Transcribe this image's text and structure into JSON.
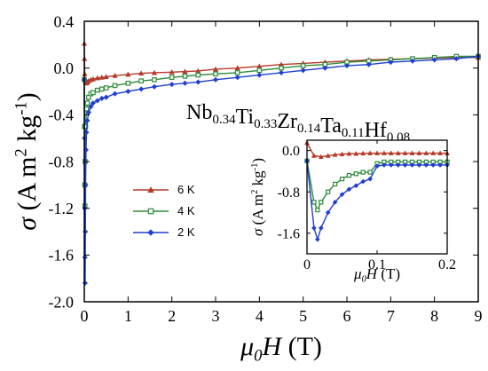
{
  "chart_data": [
    {
      "type": "scatter",
      "role": "main",
      "xlabel_symbol": "μ",
      "xlabel_sub": "0",
      "xlabel_var": "H",
      "xlabel_unit": " (T)",
      "ylabel_symbol": "σ",
      "ylabel_unit": " (A m",
      "ylabel_sup1": "2",
      "ylabel_mid": " kg",
      "ylabel_sup2": "-1",
      "ylabel_end": ")",
      "xlim": [
        0,
        9
      ],
      "ylim": [
        -2.0,
        0.4
      ],
      "xticks": [
        0,
        1,
        2,
        3,
        4,
        5,
        6,
        7,
        8,
        9
      ],
      "yticks": [
        "-2.0",
        "-1.6",
        "-1.2",
        "-0.8",
        "-0.4",
        "0.0",
        "0.4"
      ],
      "ytick_values": [
        -2.0,
        -1.6,
        -1.2,
        -0.8,
        -0.4,
        0.0,
        0.4
      ],
      "annotation": {
        "parts": [
          {
            "t": "Nb",
            "s": "0.34"
          },
          {
            "t": "Ti",
            "s": "0.33"
          },
          {
            "t": "Zr",
            "s": "0.14"
          },
          {
            "t": "Ta",
            "s": "0.11"
          },
          {
            "t": "Hf",
            "s": "0.08"
          }
        ]
      },
      "legend": {
        "placement": "middle-left"
      },
      "series": [
        {
          "name": "6 K",
          "color": "#b53a2a",
          "marker": "triangle",
          "x": [
            0,
            0.005,
            0.01,
            0.02,
            0.03,
            0.05,
            0.07,
            0.1,
            0.15,
            0.2,
            0.3,
            0.4,
            0.5,
            0.7,
            1.0,
            1.3,
            1.6,
            2.0,
            2.3,
            2.6,
            3.0,
            3.5,
            4.0,
            4.5,
            5.0,
            5.5,
            6.0,
            6.5,
            7.0,
            7.5,
            8.0,
            8.5,
            9.0
          ],
          "y": [
            0.21,
            0.08,
            -0.05,
            -0.1,
            -0.12,
            -0.13,
            -0.12,
            -0.11,
            -0.1,
            -0.095,
            -0.085,
            -0.08,
            -0.075,
            -0.065,
            -0.055,
            -0.045,
            -0.04,
            -0.035,
            -0.03,
            -0.025,
            -0.01,
            0.0,
            0.015,
            0.03,
            0.04,
            0.05,
            0.06,
            0.07,
            0.075,
            0.08,
            0.085,
            0.09,
            0.09
          ]
        },
        {
          "name": "4 K",
          "color": "#2e8b3a",
          "marker": "square",
          "x": [
            0,
            0.005,
            0.01,
            0.015,
            0.02,
            0.03,
            0.05,
            0.07,
            0.1,
            0.15,
            0.2,
            0.3,
            0.4,
            0.5,
            0.7,
            1.0,
            1.3,
            1.6,
            2.0,
            2.3,
            2.6,
            3.0,
            3.5,
            4.0,
            4.5,
            5.0,
            5.5,
            6.0,
            6.5,
            7.0,
            7.5,
            8.0,
            8.5,
            9.0
          ],
          "y": [
            -0.1,
            -0.5,
            -1.0,
            -1.18,
            -0.8,
            -0.5,
            -0.35,
            -0.3,
            -0.25,
            -0.22,
            -0.21,
            -0.19,
            -0.18,
            -0.17,
            -0.15,
            -0.13,
            -0.11,
            -0.1,
            -0.08,
            -0.07,
            -0.06,
            -0.05,
            -0.04,
            -0.02,
            0.0,
            0.02,
            0.03,
            0.05,
            0.06,
            0.07,
            0.08,
            0.09,
            0.1,
            0.1
          ]
        },
        {
          "name": "2 K",
          "color": "#1f3fd0",
          "marker": "diamond",
          "x": [
            0,
            0.005,
            0.01,
            0.015,
            0.02,
            0.025,
            0.03,
            0.04,
            0.05,
            0.07,
            0.1,
            0.15,
            0.2,
            0.3,
            0.4,
            0.5,
            0.7,
            1.0,
            1.3,
            1.6,
            2.0,
            2.3,
            2.6,
            3.0,
            3.5,
            4.0,
            4.5,
            5.0,
            5.5,
            6.0,
            6.5,
            7.0,
            7.5,
            8.0,
            8.5,
            9.0
          ],
          "y": [
            -0.1,
            -0.6,
            -1.2,
            -1.62,
            -1.84,
            -1.4,
            -1.0,
            -0.7,
            -0.55,
            -0.45,
            -0.38,
            -0.33,
            -0.3,
            -0.28,
            -0.26,
            -0.25,
            -0.22,
            -0.2,
            -0.18,
            -0.16,
            -0.14,
            -0.13,
            -0.12,
            -0.1,
            -0.08,
            -0.06,
            -0.04,
            -0.02,
            0.0,
            0.02,
            0.03,
            0.05,
            0.06,
            0.07,
            0.08,
            0.1
          ]
        }
      ]
    },
    {
      "type": "line",
      "role": "inset",
      "xlabel_symbol": "μ",
      "xlabel_sub": "0",
      "xlabel_var": "H",
      "xlabel_unit": " (T)",
      "ylabel_symbol": "σ",
      "ylabel_unit": " (A m",
      "ylabel_sup1": "2",
      "ylabel_mid": " kg",
      "ylabel_sup2": "-1",
      "ylabel_end": ")",
      "xlim": [
        0,
        0.2
      ],
      "ylim": [
        -2.0,
        0.2
      ],
      "xticks": [
        "0",
        "0.1",
        "0.2"
      ],
      "xtick_values": [
        0,
        0.1,
        0.2
      ],
      "yticks": [
        "-1.6",
        "-0.8",
        "0.0"
      ],
      "ytick_values": [
        -1.6,
        -0.8,
        0.0
      ],
      "series": [
        {
          "name": "6 K",
          "color": "#b53a2a",
          "marker": "triangle",
          "x": [
            0,
            0.01,
            0.02,
            0.03,
            0.04,
            0.05,
            0.06,
            0.07,
            0.08,
            0.09,
            0.1,
            0.11,
            0.12,
            0.13,
            0.14,
            0.15,
            0.16,
            0.17,
            0.18,
            0.19,
            0.2
          ],
          "y": [
            0.15,
            -0.1,
            -0.12,
            -0.1,
            -0.08,
            -0.07,
            -0.06,
            -0.06,
            -0.055,
            -0.05,
            -0.05,
            -0.05,
            -0.05,
            -0.05,
            -0.05,
            -0.05,
            -0.05,
            -0.05,
            -0.05,
            -0.05,
            -0.05
          ]
        },
        {
          "name": "4 K",
          "color": "#2e8b3a",
          "marker": "square",
          "x": [
            0,
            0.01,
            0.015,
            0.02,
            0.03,
            0.04,
            0.05,
            0.06,
            0.07,
            0.08,
            0.09,
            0.1,
            0.11,
            0.12,
            0.13,
            0.14,
            0.15,
            0.16,
            0.17,
            0.18,
            0.19,
            0.2
          ],
          "y": [
            -0.2,
            -1.0,
            -1.15,
            -1.0,
            -0.8,
            -0.65,
            -0.55,
            -0.48,
            -0.45,
            -0.42,
            -0.42,
            -0.25,
            -0.22,
            -0.22,
            -0.22,
            -0.22,
            -0.22,
            -0.22,
            -0.22,
            -0.22,
            -0.22,
            -0.22
          ]
        },
        {
          "name": "2 K",
          "color": "#1f3fd0",
          "marker": "diamond",
          "x": [
            0,
            0.01,
            0.015,
            0.02,
            0.03,
            0.04,
            0.05,
            0.06,
            0.07,
            0.08,
            0.09,
            0.1,
            0.11,
            0.12,
            0.13,
            0.14,
            0.15,
            0.16,
            0.17,
            0.18,
            0.19,
            0.2
          ],
          "y": [
            -0.2,
            -1.5,
            -1.72,
            -1.5,
            -1.2,
            -1.0,
            -0.85,
            -0.75,
            -0.68,
            -0.6,
            -0.55,
            -0.3,
            -0.28,
            -0.28,
            -0.28,
            -0.28,
            -0.28,
            -0.28,
            -0.28,
            -0.28,
            -0.28,
            -0.28
          ]
        }
      ]
    }
  ]
}
